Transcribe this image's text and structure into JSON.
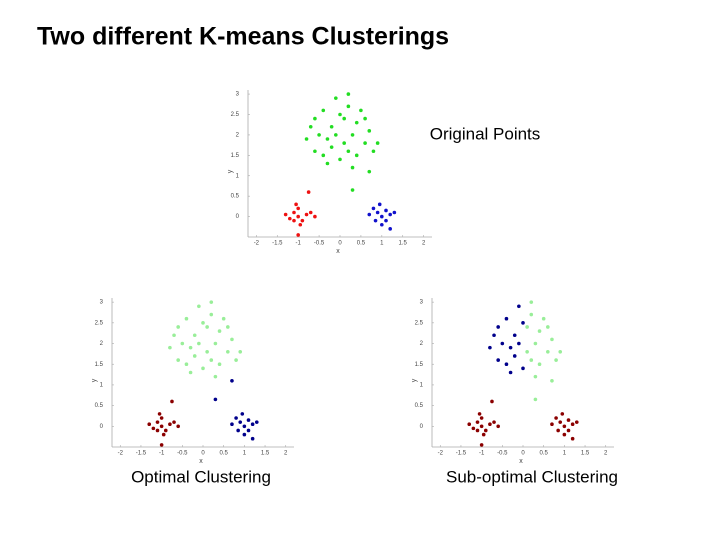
{
  "title": "Two different K-means Clusterings",
  "chart_data": [
    {
      "type": "scatter",
      "title": "Original Points",
      "xlabel": "x",
      "ylabel": "y",
      "xlim": [
        -2.2,
        2.2
      ],
      "ylim": [
        -0.5,
        3.1
      ],
      "xticks": [
        -2,
        -1.5,
        -1,
        -0.5,
        0,
        0.5,
        1,
        1.5,
        2
      ],
      "yticks": [
        0,
        0.5,
        1,
        1.5,
        2,
        2.5,
        3
      ],
      "series": [
        {
          "color": "#22dd22",
          "x": [
            -0.6,
            -0.4,
            -0.2,
            0,
            0.2,
            0.4,
            -0.3,
            0.1,
            0.3,
            -0.5,
            0.6,
            0.7,
            -0.8,
            -0.1,
            0.2,
            -0.6,
            0.4,
            0,
            -0.3,
            0.8,
            -0.2,
            0.5,
            -0.7,
            0.1,
            -0.4,
            0.3,
            0.9,
            -0.1,
            0.6,
            0.2,
            0.7,
            0.3
          ],
          "values": [
            2.4,
            2.6,
            2.2,
            2.5,
            2.7,
            2.3,
            1.9,
            1.8,
            2.0,
            2.0,
            1.8,
            2.1,
            1.9,
            2.9,
            3.0,
            1.6,
            1.5,
            1.4,
            1.3,
            1.6,
            1.7,
            2.6,
            2.2,
            2.4,
            1.5,
            1.2,
            1.8,
            2.0,
            2.4,
            1.6,
            1.1,
            0.65
          ]
        },
        {
          "color": "#ee1111",
          "x": [
            -1.0,
            -1.1,
            -0.9,
            -1.2,
            -0.8,
            -1.0,
            -0.7,
            -1.3,
            -0.95,
            -1.05,
            -0.6,
            -1.1,
            -0.75,
            -1.0
          ],
          "values": [
            0,
            0.1,
            -0.1,
            -0.05,
            0.05,
            0.2,
            0.1,
            0.05,
            -0.2,
            0.3,
            0,
            -0.1,
            0.6,
            -0.45
          ]
        },
        {
          "color": "#1111cc",
          "x": [
            0.9,
            1.0,
            1.1,
            1.2,
            0.8,
            1.0,
            1.3,
            0.95,
            1.1,
            0.7,
            1.2,
            0.85
          ],
          "values": [
            0.1,
            0,
            0.15,
            0.05,
            0.2,
            -0.2,
            0.1,
            0.3,
            -0.1,
            0.05,
            -0.3,
            -0.1
          ]
        }
      ]
    },
    {
      "type": "scatter",
      "title": "Optimal Clustering",
      "xlabel": "x",
      "ylabel": "y",
      "xlim": [
        -2.2,
        2.2
      ],
      "ylim": [
        -0.5,
        3.1
      ],
      "xticks": [
        -2,
        -1.5,
        -1,
        -0.5,
        0,
        0.5,
        1,
        1.5,
        2
      ],
      "yticks": [
        0,
        0.5,
        1,
        1.5,
        2,
        2.5,
        3
      ],
      "series": [
        {
          "color": "#99ee99",
          "x": [
            -0.6,
            -0.4,
            -0.2,
            0,
            0.2,
            0.4,
            -0.3,
            0.1,
            0.3,
            -0.5,
            0.6,
            0.7,
            -0.8,
            -0.1,
            0.2,
            -0.6,
            0.4,
            0,
            -0.3,
            0.8,
            -0.2,
            0.5,
            -0.7,
            0.1,
            -0.4,
            0.3,
            0.9,
            -0.1,
            0.6,
            0.2
          ],
          "values": [
            2.4,
            2.6,
            2.2,
            2.5,
            2.7,
            2.3,
            1.9,
            1.8,
            2.0,
            2.0,
            1.8,
            2.1,
            1.9,
            2.9,
            3.0,
            1.6,
            1.5,
            1.4,
            1.3,
            1.6,
            1.7,
            2.6,
            2.2,
            2.4,
            1.5,
            1.2,
            1.8,
            2.0,
            2.4,
            1.6
          ]
        },
        {
          "color": "#8b0000",
          "x": [
            -1.0,
            -1.1,
            -0.9,
            -1.2,
            -0.8,
            -1.0,
            -0.7,
            -1.3,
            -0.95,
            -1.05,
            -0.6,
            -1.1,
            -0.75,
            -1.0
          ],
          "values": [
            0,
            0.1,
            -0.1,
            -0.05,
            0.05,
            0.2,
            0.1,
            0.05,
            -0.2,
            0.3,
            0,
            -0.1,
            0.6,
            -0.45
          ]
        },
        {
          "color": "#00008b",
          "x": [
            0.9,
            1.0,
            1.1,
            1.2,
            0.8,
            1.0,
            1.3,
            0.95,
            1.1,
            0.7,
            1.2,
            0.85,
            0.7,
            0.3
          ],
          "values": [
            0.1,
            0,
            0.15,
            0.05,
            0.2,
            -0.2,
            0.1,
            0.3,
            -0.1,
            0.05,
            -0.3,
            -0.1,
            1.1,
            0.65
          ]
        }
      ]
    },
    {
      "type": "scatter",
      "title": "Sub-optimal Clustering",
      "xlabel": "x",
      "ylabel": "y",
      "xlim": [
        -2.2,
        2.2
      ],
      "ylim": [
        -0.5,
        3.1
      ],
      "xticks": [
        -2,
        -1.5,
        -1,
        -0.5,
        0,
        0.5,
        1,
        1.5,
        2
      ],
      "yticks": [
        0,
        0.5,
        1,
        1.5,
        2,
        2.5,
        3
      ],
      "series": [
        {
          "color": "#00008b",
          "x": [
            -0.6,
            -0.4,
            -0.2,
            -0.3,
            -0.5,
            -0.8,
            -0.1,
            -0.6,
            -0.3,
            -0.2,
            -0.7,
            -0.4,
            -0.1,
            0,
            0
          ],
          "values": [
            2.4,
            2.6,
            2.2,
            1.9,
            2.0,
            1.9,
            2.9,
            1.6,
            1.3,
            1.7,
            2.2,
            1.5,
            2.0,
            2.5,
            1.4
          ]
        },
        {
          "color": "#99ee99",
          "x": [
            0.2,
            0.4,
            0.1,
            0.3,
            0.6,
            0.7,
            0.2,
            0.4,
            0.8,
            0.5,
            0.1,
            0.3,
            0.9,
            0.6,
            0.2,
            0.7,
            0.3
          ],
          "values": [
            2.7,
            2.3,
            1.8,
            2.0,
            1.8,
            2.1,
            3.0,
            1.5,
            1.6,
            2.6,
            2.4,
            1.2,
            1.8,
            2.4,
            1.6,
            1.1,
            0.65
          ]
        },
        {
          "color": "#8b0000",
          "x": [
            -1.0,
            -1.1,
            -0.9,
            -1.2,
            -0.8,
            -1.0,
            -0.7,
            -1.3,
            -0.95,
            -1.05,
            -0.6,
            -1.1,
            -0.75,
            -1.0,
            0.9,
            1.0,
            1.1,
            1.2,
            0.8,
            1.0,
            1.3,
            0.95,
            1.1,
            0.7,
            1.2,
            0.85
          ],
          "values": [
            0,
            0.1,
            -0.1,
            -0.05,
            0.05,
            0.2,
            0.1,
            0.05,
            -0.2,
            0.3,
            0,
            -0.1,
            0.6,
            -0.45,
            0.1,
            0,
            0.15,
            0.05,
            0.2,
            -0.2,
            0.1,
            0.3,
            -0.1,
            0.05,
            -0.3,
            -0.1
          ]
        }
      ]
    }
  ]
}
